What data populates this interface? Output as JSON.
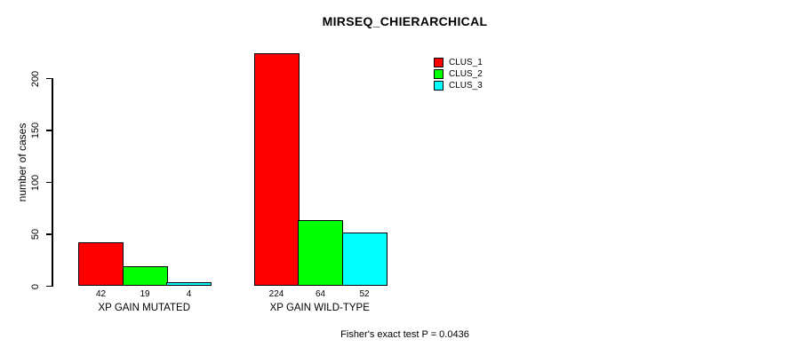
{
  "chart_data": {
    "type": "bar",
    "title": "MIRSEQ_CHIERARCHICAL",
    "xlabel": "",
    "ylabel": "number of cases",
    "categories": [
      "XP GAIN MUTATED",
      "XP GAIN WILD-TYPE"
    ],
    "series": [
      {
        "name": "CLUS_1",
        "color": "#ff0000",
        "values": [
          42,
          224
        ]
      },
      {
        "name": "CLUS_2",
        "color": "#00ff00",
        "values": [
          19,
          64
        ]
      },
      {
        "name": "CLUS_3",
        "color": "#00ffff",
        "values": [
          4,
          52
        ]
      }
    ],
    "bar_labels": [
      [
        "42",
        "19",
        "4"
      ],
      [
        "224",
        "64",
        "52"
      ]
    ],
    "yticks": [
      0,
      50,
      100,
      150,
      200
    ],
    "ylim": [
      0,
      230
    ],
    "grid": false,
    "legend_position": "top-right",
    "annotation": "Fisher's exact test P = 0.0436"
  }
}
